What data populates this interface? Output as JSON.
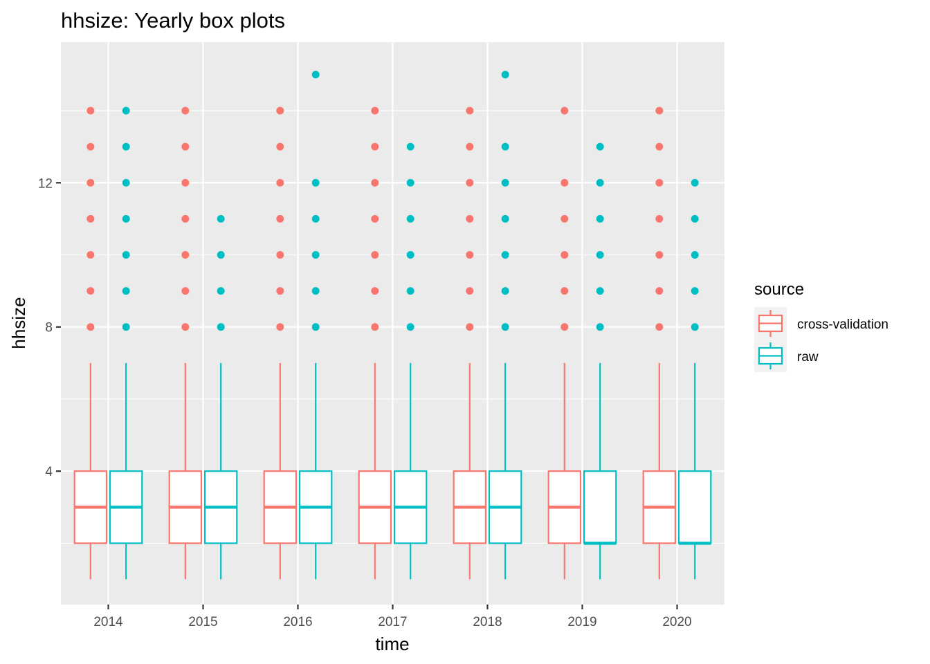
{
  "chart_data": {
    "type": "box",
    "title": "hhsize: Yearly box plots",
    "xlabel": "time",
    "ylabel": "hhsize",
    "categories": [
      "2014",
      "2015",
      "2016",
      "2017",
      "2018",
      "2019",
      "2020"
    ],
    "yticks": [
      4,
      8,
      12
    ],
    "ylim": [
      0.3,
      15.9
    ],
    "grid": true,
    "legend": {
      "title": "source",
      "position": "right",
      "entries": [
        "cross-validation",
        "raw"
      ]
    },
    "series": [
      {
        "name": "cross-validation",
        "color": "#F8766D",
        "boxes": [
          {
            "min": 1,
            "q1": 2,
            "median": 3,
            "q3": 4,
            "max": 7,
            "outliers": [
              8,
              9,
              10,
              11,
              12,
              13,
              14
            ]
          },
          {
            "min": 1,
            "q1": 2,
            "median": 3,
            "q3": 4,
            "max": 7,
            "outliers": [
              8,
              9,
              10,
              11,
              12,
              13,
              14
            ]
          },
          {
            "min": 1,
            "q1": 2,
            "median": 3,
            "q3": 4,
            "max": 7,
            "outliers": [
              8,
              9,
              10,
              11,
              12,
              13,
              14
            ]
          },
          {
            "min": 1,
            "q1": 2,
            "median": 3,
            "q3": 4,
            "max": 7,
            "outliers": [
              8,
              9,
              10,
              11,
              12,
              13,
              14
            ]
          },
          {
            "min": 1,
            "q1": 2,
            "median": 3,
            "q3": 4,
            "max": 7,
            "outliers": [
              8,
              9,
              10,
              11,
              12,
              13,
              14
            ]
          },
          {
            "min": 1,
            "q1": 2,
            "median": 3,
            "q3": 4,
            "max": 7,
            "outliers": [
              8,
              9,
              10,
              11,
              12,
              14
            ]
          },
          {
            "min": 1,
            "q1": 2,
            "median": 3,
            "q3": 4,
            "max": 7,
            "outliers": [
              8,
              9,
              10,
              11,
              12,
              13,
              14
            ]
          }
        ]
      },
      {
        "name": "raw",
        "color": "#00BFC4",
        "boxes": [
          {
            "min": 1,
            "q1": 2,
            "median": 3,
            "q3": 4,
            "max": 7,
            "outliers": [
              8,
              9,
              10,
              11,
              12,
              13,
              14
            ]
          },
          {
            "min": 1,
            "q1": 2,
            "median": 3,
            "q3": 4,
            "max": 7,
            "outliers": [
              8,
              9,
              10,
              11
            ]
          },
          {
            "min": 1,
            "q1": 2,
            "median": 3,
            "q3": 4,
            "max": 7,
            "outliers": [
              8,
              9,
              10,
              11,
              12,
              15
            ]
          },
          {
            "min": 1,
            "q1": 2,
            "median": 3,
            "q3": 4,
            "max": 7,
            "outliers": [
              8,
              9,
              10,
              11,
              12,
              13
            ]
          },
          {
            "min": 1,
            "q1": 2,
            "median": 3,
            "q3": 4,
            "max": 7,
            "outliers": [
              8,
              9,
              10,
              11,
              12,
              13,
              15
            ]
          },
          {
            "min": 1,
            "q1": 2,
            "median": 2,
            "q3": 4,
            "max": 7,
            "outliers": [
              8,
              9,
              10,
              11,
              12,
              13
            ]
          },
          {
            "min": 1,
            "q1": 2,
            "median": 2,
            "q3": 4,
            "max": 7,
            "outliers": [
              8,
              9,
              10,
              11,
              12
            ]
          }
        ]
      }
    ]
  }
}
